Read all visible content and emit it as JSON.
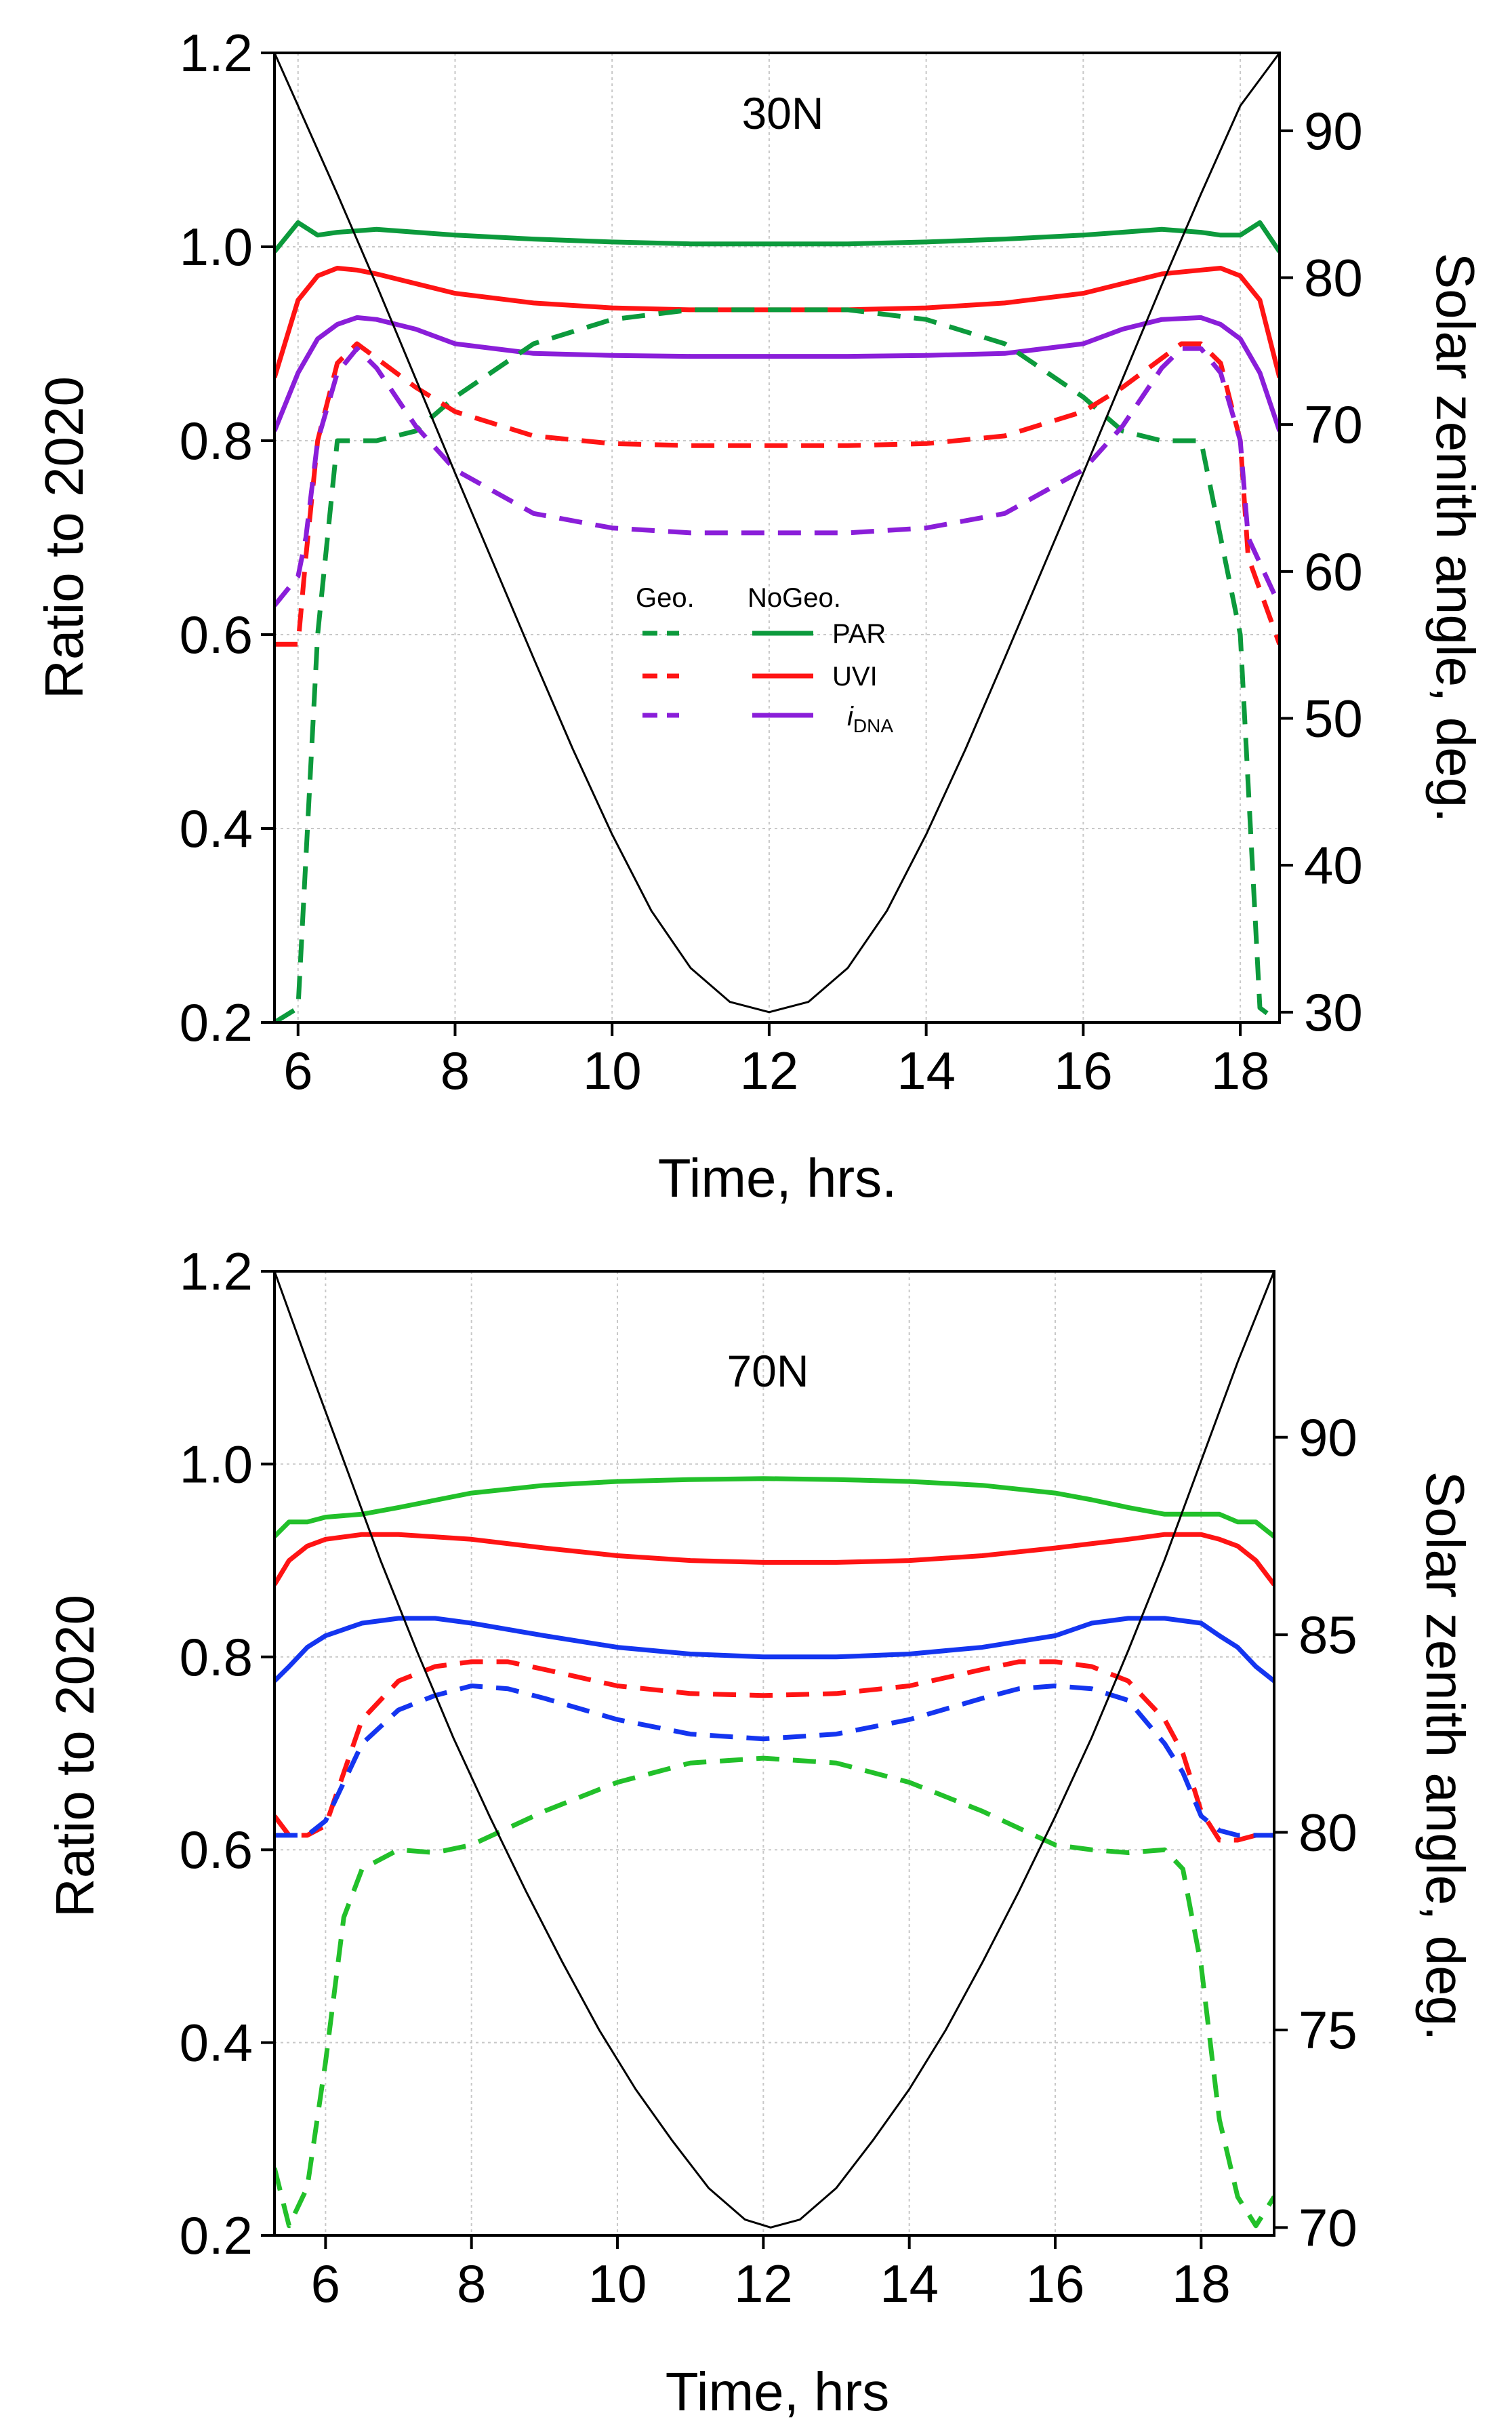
{
  "colors": {
    "green_top": "#0c9a3c",
    "red": "#ff1414",
    "purple": "#8a1ed9",
    "green_bottom": "#22c02a",
    "blue": "#1435f0",
    "sza": "#000000"
  },
  "chart_data": [
    {
      "type": "line",
      "title": "30N",
      "xlabel": "Time, hrs.",
      "ylabel": "Ratio to 2020",
      "y2label": "Solar zenith angle, deg.",
      "xlim": [
        5.7,
        18.5
      ],
      "ylim": [
        0.2,
        1.2
      ],
      "y2lim": [
        29.3,
        95.3
      ],
      "xticks": [
        6,
        8,
        10,
        12,
        14,
        16,
        18
      ],
      "yticks": [
        0.2,
        0.4,
        0.6,
        0.8,
        1.0,
        1.2
      ],
      "y2ticks": [
        30,
        40,
        50,
        60,
        70,
        80,
        90
      ],
      "grid": true,
      "legend": {
        "position": "center",
        "header_geo": "Geo.",
        "header_nogeo": "NoGeo.",
        "entries": [
          {
            "label": "PAR",
            "color": "green_top"
          },
          {
            "label": "UVI",
            "color": "red"
          },
          {
            "label_italic": "i",
            "label_sub": "DNA",
            "color": "purple"
          }
        ]
      },
      "series": [
        {
          "name": "PAR",
          "style": "solid",
          "color": "green_top",
          "axis": "left",
          "x": [
            5.7,
            6.0,
            6.25,
            6.5,
            7.0,
            8.0,
            9.0,
            10.0,
            11.0,
            12.0,
            13.0,
            14.0,
            15.0,
            16.0,
            17.0,
            17.5,
            17.75,
            18.0,
            18.25,
            18.5
          ],
          "y": [
            0.995,
            1.025,
            1.012,
            1.015,
            1.018,
            1.012,
            1.008,
            1.005,
            1.003,
            1.003,
            1.003,
            1.005,
            1.008,
            1.012,
            1.018,
            1.015,
            1.012,
            1.012,
            1.025,
            0.995
          ]
        },
        {
          "name": "UVI",
          "style": "solid",
          "color": "red",
          "axis": "left",
          "x": [
            5.7,
            6.0,
            6.25,
            6.5,
            6.75,
            7.0,
            7.5,
            8.0,
            9.0,
            10.0,
            11.0,
            12.0,
            13.0,
            14.0,
            15.0,
            16.0,
            16.5,
            17.0,
            17.5,
            17.75,
            18.0,
            18.25,
            18.5
          ],
          "y": [
            0.865,
            0.945,
            0.97,
            0.978,
            0.976,
            0.972,
            0.962,
            0.952,
            0.942,
            0.937,
            0.935,
            0.935,
            0.935,
            0.937,
            0.942,
            0.952,
            0.962,
            0.972,
            0.976,
            0.978,
            0.97,
            0.945,
            0.865
          ]
        },
        {
          "name": "iDNA",
          "style": "solid",
          "color": "purple",
          "axis": "left",
          "x": [
            5.7,
            6.0,
            6.25,
            6.5,
            6.75,
            7.0,
            7.5,
            8.0,
            9.0,
            10.0,
            11.0,
            12.0,
            13.0,
            14.0,
            15.0,
            16.0,
            16.5,
            17.0,
            17.5,
            17.75,
            18.0,
            18.25,
            18.5
          ],
          "y": [
            0.81,
            0.87,
            0.905,
            0.92,
            0.927,
            0.925,
            0.915,
            0.9,
            0.89,
            0.888,
            0.887,
            0.887,
            0.887,
            0.888,
            0.89,
            0.9,
            0.915,
            0.925,
            0.927,
            0.92,
            0.905,
            0.87,
            0.81
          ]
        },
        {
          "name": "PAR",
          "style": "dashed",
          "color": "green_top",
          "axis": "left",
          "x": [
            5.7,
            6.0,
            6.25,
            6.5,
            7.0,
            7.5,
            8.0,
            9.0,
            10.0,
            11.0,
            12.0,
            13.0,
            14.0,
            15.0,
            16.0,
            16.5,
            17.0,
            17.5,
            18.0,
            18.25,
            18.5
          ],
          "y": [
            0.2,
            0.215,
            0.6,
            0.8,
            0.8,
            0.81,
            0.845,
            0.9,
            0.925,
            0.935,
            0.935,
            0.935,
            0.925,
            0.9,
            0.845,
            0.81,
            0.8,
            0.8,
            0.6,
            0.215,
            0.2
          ]
        },
        {
          "name": "UVI",
          "style": "dashed",
          "color": "red",
          "axis": "left",
          "x": [
            5.7,
            6.0,
            6.1,
            6.25,
            6.5,
            6.75,
            7.0,
            7.5,
            8.0,
            9.0,
            10.0,
            11.0,
            12.0,
            13.0,
            14.0,
            15.0,
            16.0,
            16.5,
            17.0,
            17.25,
            17.5,
            17.75,
            18.0,
            18.1,
            18.5
          ],
          "y": [
            0.59,
            0.59,
            0.68,
            0.8,
            0.88,
            0.9,
            0.885,
            0.855,
            0.83,
            0.805,
            0.797,
            0.795,
            0.795,
            0.795,
            0.797,
            0.805,
            0.83,
            0.855,
            0.885,
            0.9,
            0.9,
            0.88,
            0.8,
            0.68,
            0.59
          ]
        },
        {
          "name": "iDNA",
          "style": "dashed",
          "color": "purple",
          "axis": "left",
          "x": [
            5.7,
            6.0,
            6.1,
            6.25,
            6.5,
            6.75,
            7.0,
            7.5,
            8.0,
            9.0,
            10.0,
            11.0,
            12.0,
            13.0,
            14.0,
            15.0,
            16.0,
            16.5,
            17.0,
            17.25,
            17.5,
            17.75,
            18.0,
            18.1,
            18.5
          ],
          "y": [
            0.63,
            0.66,
            0.7,
            0.8,
            0.87,
            0.895,
            0.875,
            0.815,
            0.77,
            0.725,
            0.71,
            0.705,
            0.705,
            0.705,
            0.71,
            0.725,
            0.77,
            0.815,
            0.875,
            0.895,
            0.895,
            0.87,
            0.8,
            0.7,
            0.63
          ]
        },
        {
          "name": "SZA",
          "style": "thin",
          "color": "sza",
          "axis": "right",
          "x": [
            5.7,
            6.0,
            6.5,
            7.0,
            7.5,
            8.0,
            8.5,
            9.0,
            9.5,
            10.0,
            10.5,
            11.0,
            11.5,
            12.0,
            12.5,
            13.0,
            13.5,
            14.0,
            14.5,
            15.0,
            15.5,
            16.0,
            16.5,
            17.0,
            17.5,
            18.0,
            18.5
          ],
          "y": [
            95.3,
            91.7,
            85.7,
            79.5,
            73.1,
            66.7,
            60.4,
            54.1,
            47.9,
            42.1,
            36.9,
            33.0,
            30.7,
            30.0,
            30.7,
            33.0,
            36.9,
            42.1,
            47.9,
            54.1,
            60.4,
            66.7,
            73.1,
            79.5,
            85.7,
            91.7,
            95.3
          ]
        }
      ]
    },
    {
      "type": "line",
      "title": "70N",
      "xlabel": "Time, hrs",
      "ylabel": "Ratio to 2020",
      "y2label": "Solar zenith angle, deg.",
      "xlim": [
        5.3,
        19.0
      ],
      "ylim": [
        0.2,
        1.2
      ],
      "y2lim": [
        69.8,
        94.2
      ],
      "xticks": [
        6,
        8,
        10,
        12,
        14,
        16,
        18
      ],
      "yticks": [
        0.2,
        0.4,
        0.6,
        0.8,
        1.0,
        1.2
      ],
      "y2ticks": [
        70,
        75,
        80,
        85,
        90
      ],
      "grid": true,
      "series": [
        {
          "name": "",
          "style": "solid",
          "color": "green_bottom",
          "axis": "left",
          "x": [
            5.3,
            5.5,
            5.75,
            6.0,
            6.5,
            7.0,
            8.0,
            9.0,
            10.0,
            11.0,
            12.0,
            13.0,
            14.0,
            15.0,
            16.0,
            16.5,
            17.0,
            17.5,
            18.0,
            18.25,
            18.5,
            18.75,
            19.0
          ],
          "y": [
            0.925,
            0.94,
            0.94,
            0.945,
            0.948,
            0.955,
            0.97,
            0.978,
            0.982,
            0.984,
            0.985,
            0.984,
            0.982,
            0.978,
            0.97,
            0.963,
            0.955,
            0.948,
            0.948,
            0.948,
            0.94,
            0.94,
            0.925
          ]
        },
        {
          "name": "",
          "style": "solid",
          "color": "red",
          "axis": "left",
          "x": [
            5.3,
            5.5,
            5.75,
            6.0,
            6.5,
            7.0,
            8.0,
            9.0,
            10.0,
            11.0,
            12.0,
            13.0,
            14.0,
            15.0,
            16.0,
            17.0,
            17.5,
            18.0,
            18.25,
            18.5,
            18.75,
            19.0
          ],
          "y": [
            0.875,
            0.9,
            0.915,
            0.922,
            0.927,
            0.927,
            0.922,
            0.913,
            0.905,
            0.9,
            0.898,
            0.898,
            0.9,
            0.905,
            0.913,
            0.922,
            0.927,
            0.927,
            0.922,
            0.915,
            0.9,
            0.875
          ]
        },
        {
          "name": "",
          "style": "solid",
          "color": "blue",
          "axis": "left",
          "x": [
            5.3,
            5.5,
            5.75,
            6.0,
            6.5,
            7.0,
            7.5,
            8.0,
            9.0,
            10.0,
            11.0,
            12.0,
            13.0,
            14.0,
            15.0,
            16.0,
            16.5,
            17.0,
            17.5,
            18.0,
            18.25,
            18.5,
            18.75,
            19.0
          ],
          "y": [
            0.775,
            0.79,
            0.81,
            0.822,
            0.835,
            0.84,
            0.84,
            0.835,
            0.822,
            0.81,
            0.803,
            0.8,
            0.8,
            0.803,
            0.81,
            0.822,
            0.835,
            0.84,
            0.84,
            0.835,
            0.822,
            0.81,
            0.79,
            0.775
          ]
        },
        {
          "name": "",
          "style": "dashed",
          "color": "red",
          "axis": "left",
          "x": [
            5.3,
            5.5,
            5.75,
            6.0,
            6.25,
            6.5,
            7.0,
            7.5,
            8.0,
            8.5,
            9.0,
            10.0,
            11.0,
            12.0,
            13.0,
            14.0,
            15.0,
            15.5,
            16.0,
            16.5,
            17.0,
            17.5,
            17.75,
            18.0,
            18.25,
            18.5,
            18.75,
            19.0
          ],
          "y": [
            0.635,
            0.615,
            0.615,
            0.625,
            0.68,
            0.735,
            0.775,
            0.79,
            0.795,
            0.795,
            0.787,
            0.77,
            0.762,
            0.76,
            0.762,
            0.77,
            0.787,
            0.795,
            0.795,
            0.79,
            0.775,
            0.735,
            0.7,
            0.64,
            0.61,
            0.61,
            0.615,
            0.615
          ]
        },
        {
          "name": "",
          "style": "dashed",
          "color": "blue",
          "axis": "left",
          "x": [
            5.3,
            5.5,
            5.75,
            6.0,
            6.25,
            6.5,
            7.0,
            7.5,
            8.0,
            8.5,
            9.0,
            10.0,
            11.0,
            12.0,
            13.0,
            14.0,
            15.0,
            15.5,
            16.0,
            16.5,
            17.0,
            17.5,
            17.75,
            18.0,
            18.25,
            18.5,
            18.75,
            19.0
          ],
          "y": [
            0.615,
            0.615,
            0.615,
            0.63,
            0.67,
            0.71,
            0.745,
            0.76,
            0.77,
            0.767,
            0.757,
            0.735,
            0.72,
            0.715,
            0.72,
            0.735,
            0.757,
            0.767,
            0.77,
            0.767,
            0.755,
            0.71,
            0.68,
            0.635,
            0.62,
            0.615,
            0.615,
            0.615
          ]
        },
        {
          "name": "",
          "style": "dashed",
          "color": "green_bottom",
          "axis": "left",
          "x": [
            5.3,
            5.5,
            5.75,
            6.0,
            6.25,
            6.5,
            7.0,
            7.5,
            8.0,
            9.0,
            10.0,
            11.0,
            12.0,
            13.0,
            14.0,
            15.0,
            16.0,
            16.5,
            17.0,
            17.5,
            17.75,
            18.0,
            18.25,
            18.5,
            18.75,
            19.0
          ],
          "y": [
            0.27,
            0.21,
            0.25,
            0.38,
            0.53,
            0.58,
            0.6,
            0.597,
            0.605,
            0.64,
            0.67,
            0.69,
            0.695,
            0.69,
            0.67,
            0.64,
            0.605,
            0.6,
            0.597,
            0.6,
            0.58,
            0.48,
            0.32,
            0.24,
            0.21,
            0.24
          ]
        },
        {
          "name": "",
          "style": "thin",
          "color": "sza",
          "axis": "right",
          "x": [
            5.3,
            5.75,
            6.25,
            6.75,
            7.25,
            7.75,
            8.25,
            8.75,
            9.25,
            9.75,
            10.25,
            10.75,
            11.25,
            11.75,
            12.1,
            12.5,
            13.0,
            13.5,
            14.0,
            14.5,
            15.0,
            15.5,
            16.0,
            16.5,
            17.0,
            17.5,
            18.0,
            18.5,
            19.0
          ],
          "y": [
            94.2,
            91.9,
            89.4,
            86.9,
            84.6,
            82.4,
            80.4,
            78.5,
            76.7,
            75.0,
            73.5,
            72.2,
            71.0,
            70.2,
            70.0,
            70.2,
            71.0,
            72.2,
            73.5,
            75.0,
            76.7,
            78.5,
            80.4,
            82.4,
            84.6,
            86.9,
            89.4,
            91.9,
            94.2
          ]
        }
      ]
    }
  ]
}
